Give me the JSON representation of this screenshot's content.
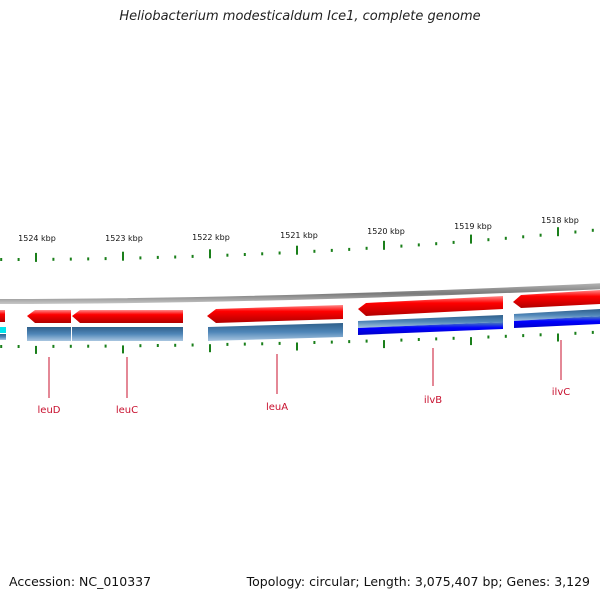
{
  "title": "Heliobacterium modesticaldum Ice1, complete genome",
  "accession": "Accession: NC_010337",
  "topology": "Topology: circular; Length: 3,075,407 bp; Genes: 3,129",
  "colors": {
    "forward_gene": "#ff0000",
    "cds_feature": "#4682b4",
    "cds_feature_dark": "#0000ff",
    "backbone": "#888888",
    "tick": "#1a7f1a",
    "label": "#c8102e",
    "partial_feature": "#00e5ee"
  },
  "kbp_labels": [
    {
      "text": "1524 kbp"
    },
    {
      "text": "1523 kbp"
    },
    {
      "text": "1522 kbp"
    },
    {
      "text": "1521 kbp"
    },
    {
      "text": "1520 kbp"
    },
    {
      "text": "1519 kbp"
    },
    {
      "text": "1518 kbp"
    }
  ],
  "genes": [
    {
      "name": "leuD"
    },
    {
      "name": "leuC"
    },
    {
      "name": "leuA"
    },
    {
      "name": "ilvB"
    },
    {
      "name": "ilvC"
    }
  ]
}
